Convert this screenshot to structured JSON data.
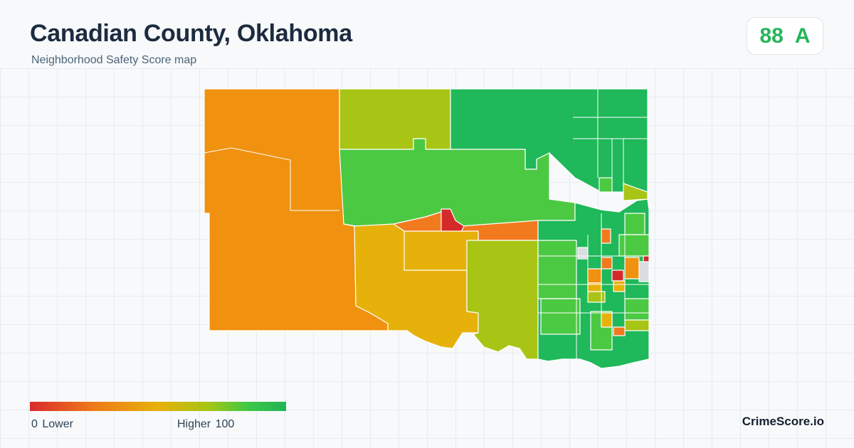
{
  "header": {
    "title": "Canadian County, Oklahoma",
    "subtitle": "Neighborhood Safety Score map"
  },
  "score": {
    "value": "88",
    "grade": "A",
    "color": "#27b45a"
  },
  "legend": {
    "min": "0",
    "min_label": "Lower",
    "max_label": "Higher",
    "max": "100",
    "colors": [
      "#d92b2b",
      "#ef7a1a",
      "#e6b10a",
      "#a5c515",
      "#3ec845",
      "#1fb457"
    ]
  },
  "brand": "CrimeScore.io",
  "map": {
    "colors": {
      "red": "#d42a2a",
      "orange": "#f0910f",
      "orange_red": "#f27a1e",
      "amber": "#e6b10a",
      "yellow_green": "#a8c414",
      "light_green": "#4cc943",
      "green": "#1fb85a",
      "no_data": "#d9dde2"
    },
    "regions": [
      {
        "name": "west-region",
        "color": "#f0910f"
      },
      {
        "name": "north-central-region",
        "color": "#a8c414"
      },
      {
        "name": "northeast-region",
        "color": "#1fb85a"
      },
      {
        "name": "central-region",
        "color": "#4cc943"
      },
      {
        "name": "south-central-region",
        "color": "#e6b10a"
      },
      {
        "name": "southeast-region",
        "color": "#a8c414"
      },
      {
        "name": "el-reno-city-region",
        "color": "#d42a2a"
      },
      {
        "name": "yukon-mustang-region",
        "color": "#1fb85a"
      }
    ]
  }
}
